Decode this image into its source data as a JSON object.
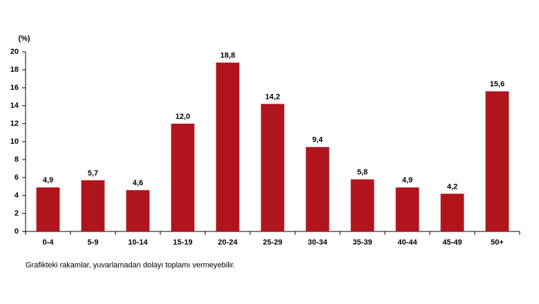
{
  "chart_data": {
    "type": "bar",
    "y_label": "(%)",
    "categories": [
      "0-4",
      "5-9",
      "10-14",
      "15-19",
      "20-24",
      "25-29",
      "30-34",
      "35-39",
      "40-44",
      "45-49",
      "50+"
    ],
    "values": [
      4.9,
      5.7,
      4.6,
      12.0,
      18.8,
      14.2,
      9.4,
      5.8,
      4.9,
      4.2,
      15.6
    ],
    "value_labels": [
      "4,9",
      "5,7",
      "4,6",
      "12,0",
      "18,8",
      "14,2",
      "9,4",
      "5,8",
      "4,9",
      "4,2",
      "15,6"
    ],
    "color": "#b0151b",
    "ylim": [
      0,
      20
    ],
    "yticks": [
      0,
      2,
      4,
      6,
      8,
      10,
      12,
      14,
      16,
      18,
      20
    ],
    "grid": false,
    "note": "Grafikteki rakamlar, yuvarlamadan dolayı toplamı vermeyebilir."
  }
}
